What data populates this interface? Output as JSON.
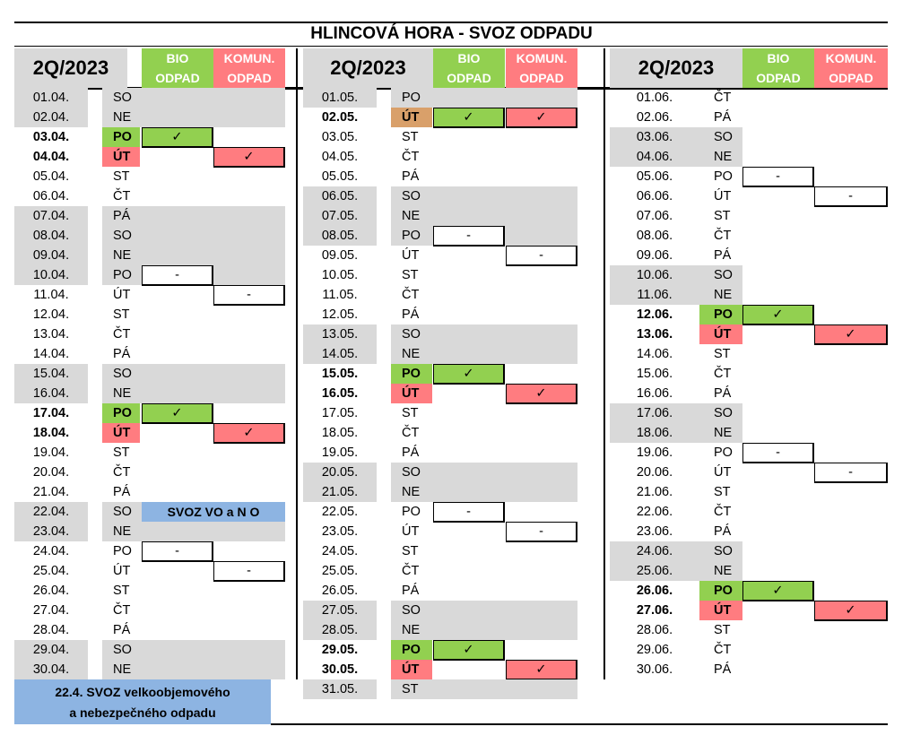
{
  "title": "HLINCOVÁ HORA  -  SVOZ ODPADU",
  "header": {
    "quarter": "2Q/2023",
    "bio_line1": "BIO",
    "bio_line2": "ODPAD",
    "kom_line1": "KOMUN.",
    "kom_line2": "ODPAD"
  },
  "colors": {
    "gray": "#d9d9d9",
    "bio": "#92d050",
    "komun": "#ff7c80",
    "note": "#8db4e2"
  },
  "check": "✓",
  "dash": "-",
  "columns": [
    {
      "month": "04",
      "rows": [
        {
          "date": "01.04.",
          "day": "SO",
          "gray": true
        },
        {
          "date": "02.04.",
          "day": "NE",
          "gray": true
        },
        {
          "date": "03.04.",
          "day": "PO",
          "bold": true,
          "dayc": "g",
          "bio": "check"
        },
        {
          "date": "04.04.",
          "day": "ÚT",
          "bold": true,
          "dayc": "r",
          "kom": "check"
        },
        {
          "date": "05.04.",
          "day": "ST"
        },
        {
          "date": "06.04.",
          "day": "ČT"
        },
        {
          "date": "07.04.",
          "day": "PÁ",
          "gray": true
        },
        {
          "date": "08.04.",
          "day": "SO",
          "gray": true
        },
        {
          "date": "09.04.",
          "day": "NE",
          "gray": true
        },
        {
          "date": "10.04.",
          "day": "PO",
          "gray": true,
          "bio": "dash"
        },
        {
          "date": "11.04.",
          "day": "ÚT",
          "kom": "dash"
        },
        {
          "date": "12.04.",
          "day": "ST"
        },
        {
          "date": "13.04.",
          "day": "ČT"
        },
        {
          "date": "14.04.",
          "day": "PÁ"
        },
        {
          "date": "15.04.",
          "day": "SO",
          "gray": true
        },
        {
          "date": "16.04.",
          "day": "NE",
          "gray": true
        },
        {
          "date": "17.04.",
          "day": "PO",
          "bold": true,
          "dayc": "g",
          "bio": "check"
        },
        {
          "date": "18.04.",
          "day": "ÚT",
          "bold": true,
          "dayc": "r",
          "kom": "check"
        },
        {
          "date": "19.04.",
          "day": "ST"
        },
        {
          "date": "20.04.",
          "day": "ČT"
        },
        {
          "date": "21.04.",
          "day": "PÁ"
        },
        {
          "date": "22.04.",
          "day": "SO",
          "gray": true,
          "note": "SVOZ VO a N O"
        },
        {
          "date": "23.04.",
          "day": "NE",
          "gray": true
        },
        {
          "date": "24.04.",
          "day": "PO",
          "bio": "dash"
        },
        {
          "date": "25.04.",
          "day": "ÚT",
          "kom": "dash"
        },
        {
          "date": "26.04.",
          "day": "ST"
        },
        {
          "date": "27.04.",
          "day": "ČT"
        },
        {
          "date": "28.04.",
          "day": "PÁ"
        },
        {
          "date": "29.04.",
          "day": "SO",
          "gray": true
        },
        {
          "date": "30.04.",
          "day": "NE",
          "gray": true
        }
      ]
    },
    {
      "month": "05",
      "rows": [
        {
          "date": "01.05.",
          "day": "PO",
          "gray": true
        },
        {
          "date": "02.05.",
          "day": "ÚT",
          "bold": true,
          "dayc": "o",
          "bio": "check",
          "kom": "check"
        },
        {
          "date": "03.05.",
          "day": "ST"
        },
        {
          "date": "04.05.",
          "day": "ČT"
        },
        {
          "date": "05.05.",
          "day": "PÁ"
        },
        {
          "date": "06.05.",
          "day": "SO",
          "gray": true
        },
        {
          "date": "07.05.",
          "day": "NE",
          "gray": true
        },
        {
          "date": "08.05.",
          "day": "PO",
          "gray": true,
          "bio": "dash"
        },
        {
          "date": "09.05.",
          "day": "ÚT",
          "kom": "dash"
        },
        {
          "date": "10.05.",
          "day": "ST"
        },
        {
          "date": "11.05.",
          "day": "ČT"
        },
        {
          "date": "12.05.",
          "day": "PÁ"
        },
        {
          "date": "13.05.",
          "day": "SO",
          "gray": true
        },
        {
          "date": "14.05.",
          "day": "NE",
          "gray": true
        },
        {
          "date": "15.05.",
          "day": "PO",
          "bold": true,
          "dayc": "g",
          "bio": "check"
        },
        {
          "date": "16.05.",
          "day": "ÚT",
          "bold": true,
          "dayc": "r",
          "kom": "check"
        },
        {
          "date": "17.05.",
          "day": "ST"
        },
        {
          "date": "18.05.",
          "day": "ČT"
        },
        {
          "date": "19.05.",
          "day": "PÁ"
        },
        {
          "date": "20.05.",
          "day": "SO",
          "gray": true
        },
        {
          "date": "21.05.",
          "day": "NE",
          "gray": true
        },
        {
          "date": "22.05.",
          "day": "PO",
          "bio": "dash"
        },
        {
          "date": "23.05.",
          "day": "ÚT",
          "kom": "dash"
        },
        {
          "date": "24.05.",
          "day": "ST"
        },
        {
          "date": "25.05.",
          "day": "ČT"
        },
        {
          "date": "26.05.",
          "day": "PÁ"
        },
        {
          "date": "27.05.",
          "day": "SO",
          "gray": true
        },
        {
          "date": "28.05.",
          "day": "NE",
          "gray": true
        },
        {
          "date": "29.05.",
          "day": "PO",
          "bold": true,
          "dayc": "g",
          "bio": "check"
        },
        {
          "date": "30.05.",
          "day": "ÚT",
          "bold": true,
          "dayc": "r",
          "kom": "check"
        },
        {
          "date": "31.05.",
          "day": "ST",
          "gray": true
        }
      ]
    },
    {
      "month": "06",
      "rows": [
        {
          "date": "01.06.",
          "day": "ČT"
        },
        {
          "date": "02.06.",
          "day": "PÁ"
        },
        {
          "date": "03.06.",
          "day": "SO",
          "gray": true
        },
        {
          "date": "04.06.",
          "day": "NE",
          "gray": true
        },
        {
          "date": "05.06.",
          "day": "PO",
          "bio": "dash"
        },
        {
          "date": "06.06.",
          "day": "ÚT",
          "kom": "dash"
        },
        {
          "date": "07.06.",
          "day": "ST"
        },
        {
          "date": "08.06.",
          "day": "ČT"
        },
        {
          "date": "09.06.",
          "day": "PÁ"
        },
        {
          "date": "10.06.",
          "day": "SO",
          "gray": true
        },
        {
          "date": "11.06.",
          "day": "NE",
          "gray": true
        },
        {
          "date": "12.06.",
          "day": "PO",
          "bold": true,
          "dayc": "g",
          "bio": "check"
        },
        {
          "date": "13.06.",
          "day": "ÚT",
          "bold": true,
          "dayc": "r",
          "kom": "check"
        },
        {
          "date": "14.06.",
          "day": "ST"
        },
        {
          "date": "15.06.",
          "day": "ČT"
        },
        {
          "date": "16.06.",
          "day": "PÁ"
        },
        {
          "date": "17.06.",
          "day": "SO",
          "gray": true
        },
        {
          "date": "18.06.",
          "day": "NE",
          "gray": true
        },
        {
          "date": "19.06.",
          "day": "PO",
          "bio": "dash"
        },
        {
          "date": "20.06.",
          "day": "ÚT",
          "kom": "dash"
        },
        {
          "date": "21.06.",
          "day": "ST"
        },
        {
          "date": "22.06.",
          "day": "ČT"
        },
        {
          "date": "23.06.",
          "day": "PÁ"
        },
        {
          "date": "24.06.",
          "day": "SO",
          "gray": true
        },
        {
          "date": "25.06.",
          "day": "NE",
          "gray": true
        },
        {
          "date": "26.06.",
          "day": "PO",
          "bold": true,
          "dayc": "g",
          "bio": "check"
        },
        {
          "date": "27.06.",
          "day": "ÚT",
          "bold": true,
          "dayc": "r",
          "kom": "check"
        },
        {
          "date": "28.06.",
          "day": "ST"
        },
        {
          "date": "29.06.",
          "day": "ČT"
        },
        {
          "date": "30.06.",
          "day": "PÁ"
        }
      ]
    }
  ],
  "footnote": {
    "line1": "22.4.  SVOZ velkoobjemového",
    "line2": "a nebezpečného odpadu"
  }
}
